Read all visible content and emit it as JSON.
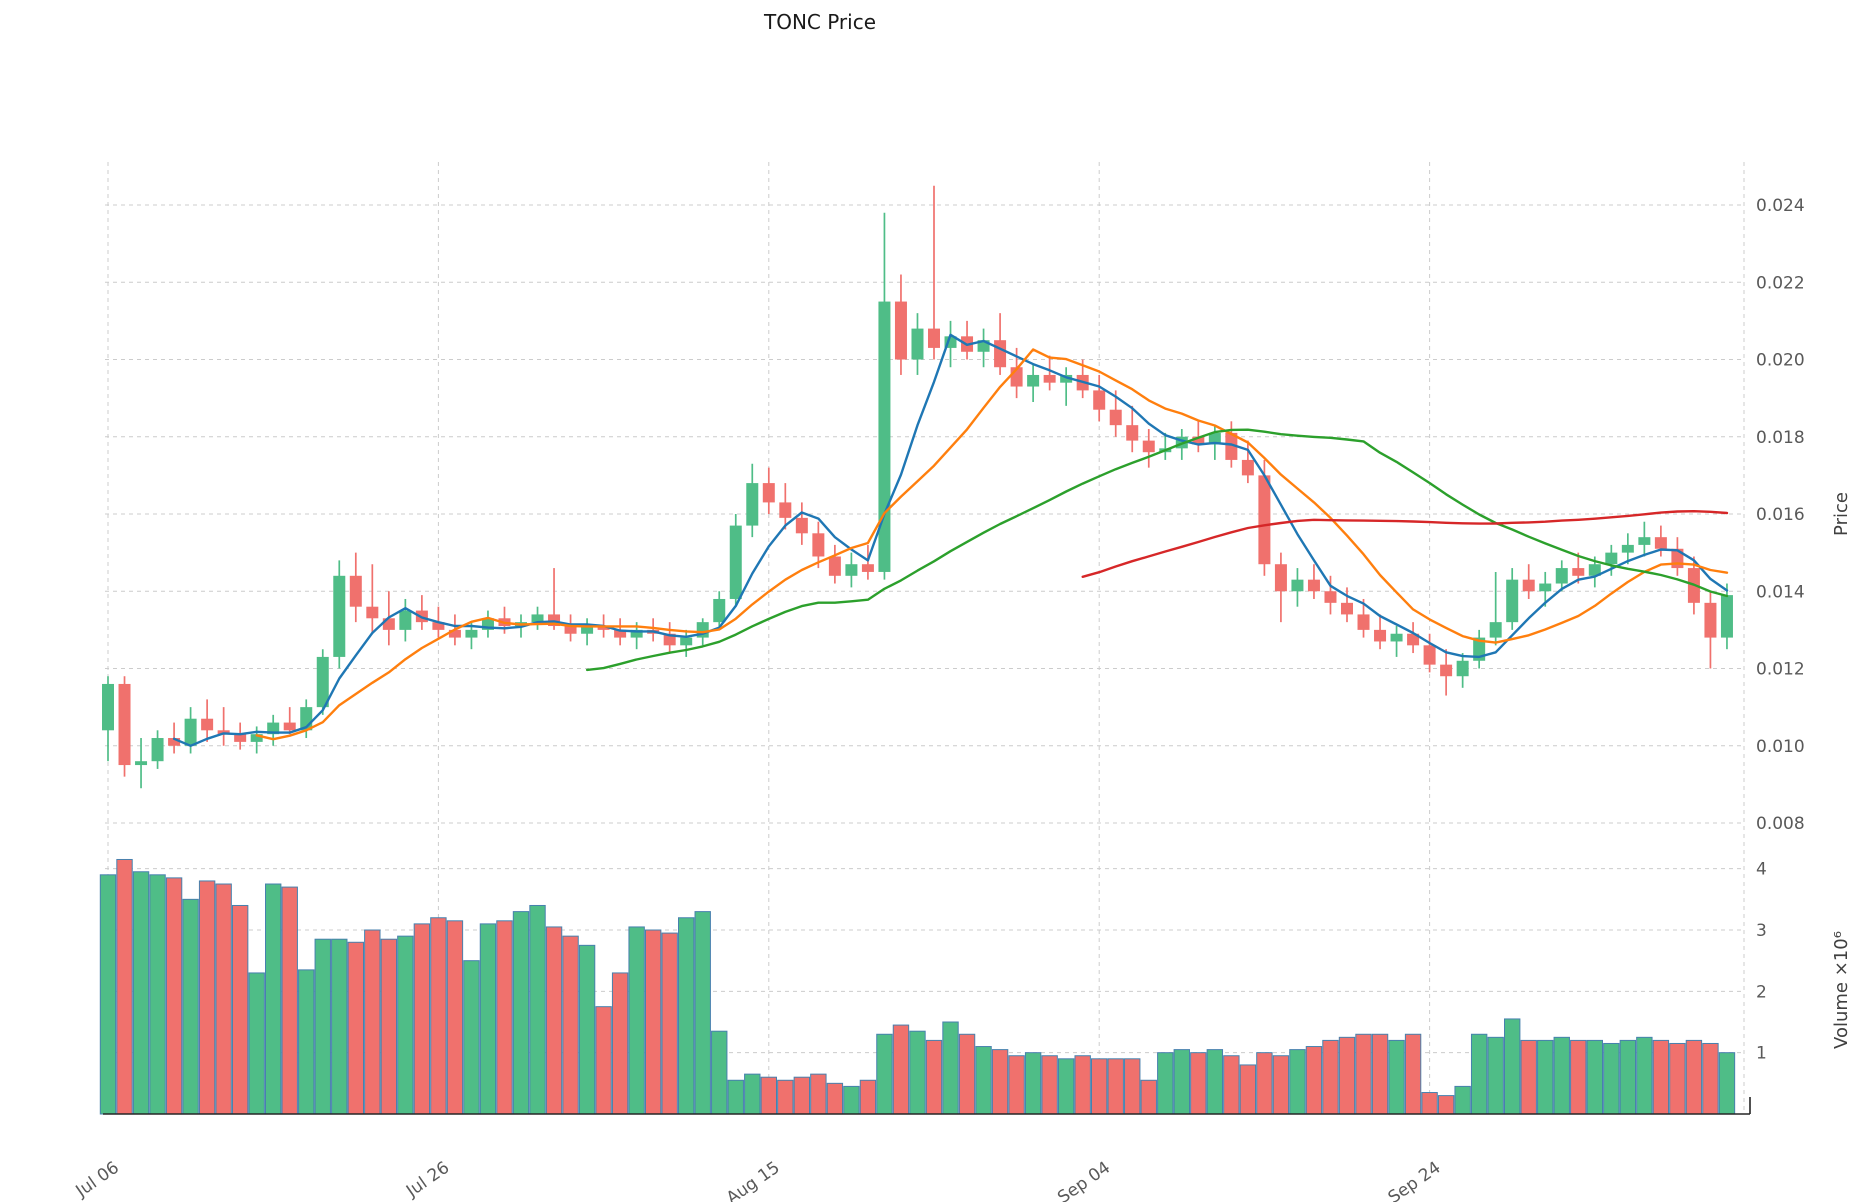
{
  "title": "TONC Price",
  "colors": {
    "up": "#4fbd87",
    "down": "#f0716d",
    "volume_edge": "#4781ae",
    "grid": "#cccccc",
    "tick_text": "#595959",
    "title_text": "#1a1a1a",
    "spine": "#262626",
    "ma_colors": [
      "#1f77b4",
      "#ff7f0e",
      "#2ca02c",
      "#d62728"
    ]
  },
  "axes": {
    "price_label": "Price",
    "volume_label": "Volume ×10⁶",
    "price_ticks": [
      0.008,
      0.01,
      0.012,
      0.014,
      0.016,
      0.018,
      0.02,
      0.022,
      0.024
    ],
    "volume_ticks": [
      1,
      2,
      3,
      4
    ],
    "x_ticks": [
      {
        "day": 0,
        "label": "Jul 06"
      },
      {
        "day": 20,
        "label": "Jul 26"
      },
      {
        "day": 40,
        "label": "Aug 15"
      },
      {
        "day": 60,
        "label": "Sep 04"
      },
      {
        "day": 80,
        "label": "Sep 24"
      }
    ]
  },
  "chart_data": {
    "type": "candlestick",
    "title": "TONC Price",
    "panels": [
      "price with moving averages",
      "volume"
    ],
    "price_axis": {
      "label": "Price",
      "range": [
        0.0078,
        0.0252
      ],
      "ticks": [
        0.008,
        0.01,
        0.012,
        0.014,
        0.016,
        0.018,
        0.02,
        0.022,
        0.024
      ]
    },
    "volume_axis": {
      "label": "Volume ×10⁶",
      "unit": 1000000,
      "ticks": [
        1,
        2,
        3,
        4
      ]
    },
    "x_tick_labels": [
      "Jul 06",
      "Jul 26",
      "Aug 15",
      "Sep 04",
      "Sep 24"
    ],
    "legend_position": "none",
    "grid": true,
    "moving_average_windows": [
      5,
      10,
      30,
      60
    ],
    "dates": [
      "Jul 06",
      "Jul 07",
      "Jul 08",
      "Jul 09",
      "Jul 10",
      "Jul 11",
      "Jul 12",
      "Jul 13",
      "Jul 14",
      "Jul 15",
      "Jul 16",
      "Jul 17",
      "Jul 18",
      "Jul 19",
      "Jul 20",
      "Jul 21",
      "Jul 22",
      "Jul 23",
      "Jul 24",
      "Jul 25",
      "Jul 26",
      "Jul 27",
      "Jul 28",
      "Jul 29",
      "Jul 30",
      "Jul 31",
      "Aug 01",
      "Aug 02",
      "Aug 03",
      "Aug 04",
      "Aug 05",
      "Aug 06",
      "Aug 07",
      "Aug 08",
      "Aug 09",
      "Aug 10",
      "Aug 11",
      "Aug 12",
      "Aug 13",
      "Aug 14",
      "Aug 15",
      "Aug 16",
      "Aug 17",
      "Aug 18",
      "Aug 19",
      "Aug 20",
      "Aug 21",
      "Aug 22",
      "Aug 23",
      "Aug 24",
      "Aug 25",
      "Aug 26",
      "Aug 27",
      "Aug 28",
      "Aug 29",
      "Aug 30",
      "Aug 31",
      "Sep 01",
      "Sep 02",
      "Sep 03",
      "Sep 04",
      "Sep 05",
      "Sep 06",
      "Sep 07",
      "Sep 08",
      "Sep 09",
      "Sep 10",
      "Sep 11",
      "Sep 12",
      "Sep 13",
      "Sep 14",
      "Sep 15",
      "Sep 16",
      "Sep 17",
      "Sep 18",
      "Sep 19",
      "Sep 20",
      "Sep 21",
      "Sep 22",
      "Sep 23",
      "Sep 24",
      "Sep 25",
      "Sep 26",
      "Sep 27",
      "Sep 28",
      "Sep 29",
      "Sep 30",
      "Oct 01",
      "Oct 02",
      "Oct 03",
      "Oct 04",
      "Oct 05",
      "Oct 06",
      "Oct 07",
      "Oct 08",
      "Oct 09",
      "Oct 10",
      "Oct 11",
      "Oct 12"
    ],
    "open": [
      0.0104,
      0.0116,
      0.0095,
      0.0096,
      0.0102,
      0.01,
      0.0107,
      0.0104,
      0.0103,
      0.0101,
      0.0103,
      0.0106,
      0.0104,
      0.011,
      0.0123,
      0.0144,
      0.0136,
      0.0133,
      0.013,
      0.0135,
      0.0132,
      0.013,
      0.0128,
      0.013,
      0.0133,
      0.0131,
      0.0132,
      0.0134,
      0.0131,
      0.0129,
      0.0131,
      0.013,
      0.0128,
      0.013,
      0.0129,
      0.0126,
      0.0128,
      0.0132,
      0.0138,
      0.0157,
      0.0168,
      0.0163,
      0.0159,
      0.0155,
      0.0149,
      0.0144,
      0.0147,
      0.0145,
      0.0215,
      0.02,
      0.0208,
      0.0203,
      0.0206,
      0.0202,
      0.0205,
      0.0198,
      0.0193,
      0.0196,
      0.0194,
      0.0196,
      0.0192,
      0.0187,
      0.0183,
      0.0179,
      0.0176,
      0.0177,
      0.018,
      0.0178,
      0.0181,
      0.0174,
      0.017,
      0.0147,
      0.014,
      0.0143,
      0.014,
      0.0137,
      0.0134,
      0.013,
      0.0127,
      0.0129,
      0.0126,
      0.0121,
      0.0118,
      0.0122,
      0.0128,
      0.0132,
      0.0143,
      0.014,
      0.0142,
      0.0146,
      0.0144,
      0.0147,
      0.015,
      0.0152,
      0.0154,
      0.0151,
      0.0146,
      0.0137,
      0.0128
    ],
    "high": [
      0.0118,
      0.0118,
      0.0102,
      0.0104,
      0.0106,
      0.011,
      0.0112,
      0.011,
      0.0106,
      0.0105,
      0.0108,
      0.011,
      0.0112,
      0.0125,
      0.0148,
      0.015,
      0.0147,
      0.014,
      0.0138,
      0.0139,
      0.0136,
      0.0134,
      0.0132,
      0.0135,
      0.0136,
      0.0134,
      0.0136,
      0.0146,
      0.0134,
      0.0133,
      0.0134,
      0.0133,
      0.0132,
      0.0133,
      0.0132,
      0.013,
      0.0133,
      0.014,
      0.016,
      0.0173,
      0.0172,
      0.0168,
      0.0163,
      0.0158,
      0.0152,
      0.015,
      0.0152,
      0.0238,
      0.0222,
      0.0212,
      0.0245,
      0.021,
      0.021,
      0.0208,
      0.0212,
      0.0203,
      0.0199,
      0.0201,
      0.0198,
      0.02,
      0.0196,
      0.0192,
      0.0188,
      0.0182,
      0.0181,
      0.0182,
      0.0184,
      0.0183,
      0.0184,
      0.0179,
      0.0174,
      0.015,
      0.0146,
      0.0147,
      0.0144,
      0.0141,
      0.0138,
      0.0134,
      0.0131,
      0.0132,
      0.0129,
      0.0125,
      0.0124,
      0.013,
      0.0145,
      0.0146,
      0.0147,
      0.0145,
      0.0148,
      0.015,
      0.0149,
      0.0152,
      0.0155,
      0.0158,
      0.0157,
      0.0154,
      0.0149,
      0.014,
      0.0142
    ],
    "low": [
      0.0096,
      0.0092,
      0.0089,
      0.0094,
      0.0098,
      0.0098,
      0.0101,
      0.01,
      0.0099,
      0.0098,
      0.01,
      0.0103,
      0.0102,
      0.0108,
      0.012,
      0.0132,
      0.0129,
      0.0126,
      0.0127,
      0.013,
      0.0128,
      0.0126,
      0.0125,
      0.0128,
      0.0129,
      0.0128,
      0.013,
      0.013,
      0.0127,
      0.0126,
      0.0128,
      0.0126,
      0.0125,
      0.0127,
      0.0124,
      0.0123,
      0.0126,
      0.013,
      0.0136,
      0.0154,
      0.016,
      0.0156,
      0.0152,
      0.0146,
      0.0142,
      0.0141,
      0.0143,
      0.0143,
      0.0196,
      0.0196,
      0.02,
      0.0198,
      0.02,
      0.0198,
      0.0196,
      0.019,
      0.0189,
      0.0192,
      0.0188,
      0.019,
      0.0184,
      0.018,
      0.0176,
      0.0172,
      0.0174,
      0.0174,
      0.0176,
      0.0174,
      0.0172,
      0.0168,
      0.0144,
      0.0132,
      0.0136,
      0.0138,
      0.0134,
      0.0132,
      0.0128,
      0.0125,
      0.0123,
      0.0124,
      0.0119,
      0.0113,
      0.0115,
      0.012,
      0.0126,
      0.013,
      0.0138,
      0.0136,
      0.014,
      0.0142,
      0.0141,
      0.0144,
      0.0147,
      0.0149,
      0.0149,
      0.0144,
      0.0134,
      0.012,
      0.0125
    ],
    "close": [
      0.0116,
      0.0095,
      0.0096,
      0.0102,
      0.01,
      0.0107,
      0.0104,
      0.0103,
      0.0101,
      0.0103,
      0.0106,
      0.0104,
      0.011,
      0.0123,
      0.0144,
      0.0136,
      0.0133,
      0.013,
      0.0135,
      0.0132,
      0.013,
      0.0128,
      0.013,
      0.0133,
      0.0131,
      0.0132,
      0.0134,
      0.0131,
      0.0129,
      0.0131,
      0.013,
      0.0128,
      0.013,
      0.0129,
      0.0126,
      0.0128,
      0.0132,
      0.0138,
      0.0157,
      0.0168,
      0.0163,
      0.0159,
      0.0155,
      0.0149,
      0.0144,
      0.0147,
      0.0145,
      0.0215,
      0.02,
      0.0208,
      0.0203,
      0.0206,
      0.0202,
      0.0205,
      0.0198,
      0.0193,
      0.0196,
      0.0194,
      0.0196,
      0.0192,
      0.0187,
      0.0183,
      0.0179,
      0.0176,
      0.0177,
      0.018,
      0.0178,
      0.0181,
      0.0174,
      0.017,
      0.0147,
      0.014,
      0.0143,
      0.014,
      0.0137,
      0.0134,
      0.013,
      0.0127,
      0.0129,
      0.0126,
      0.0121,
      0.0118,
      0.0122,
      0.0128,
      0.0132,
      0.0143,
      0.014,
      0.0142,
      0.0146,
      0.0144,
      0.0147,
      0.015,
      0.0152,
      0.0154,
      0.0151,
      0.0146,
      0.0137,
      0.0128,
      0.0139
    ],
    "volume_millions": [
      3.9,
      4.15,
      3.95,
      3.9,
      3.85,
      3.5,
      3.8,
      3.75,
      3.4,
      2.3,
      3.75,
      3.7,
      2.35,
      2.85,
      2.85,
      2.8,
      3.0,
      2.85,
      2.9,
      3.1,
      3.2,
      3.15,
      2.5,
      3.1,
      3.15,
      3.3,
      3.4,
      3.05,
      2.9,
      2.75,
      1.75,
      2.3,
      3.05,
      3.0,
      2.95,
      3.2,
      3.3,
      1.35,
      0.55,
      0.65,
      0.6,
      0.55,
      0.6,
      0.65,
      0.5,
      0.45,
      0.55,
      1.3,
      1.45,
      1.35,
      1.2,
      1.5,
      1.3,
      1.1,
      1.05,
      0.95,
      1.0,
      0.95,
      0.9,
      0.95,
      0.9,
      0.9,
      0.9,
      0.55,
      1.0,
      1.05,
      1.0,
      1.05,
      0.95,
      0.8,
      1.0,
      0.95,
      1.05,
      1.1,
      1.2,
      1.25,
      1.3,
      1.3,
      1.2,
      1.3,
      0.35,
      0.3,
      0.45,
      1.3,
      1.25,
      1.55,
      1.2,
      1.2,
      1.25,
      1.2,
      1.2,
      1.15,
      1.2,
      1.25,
      1.2,
      1.15,
      1.2,
      1.15,
      1.0
    ]
  }
}
